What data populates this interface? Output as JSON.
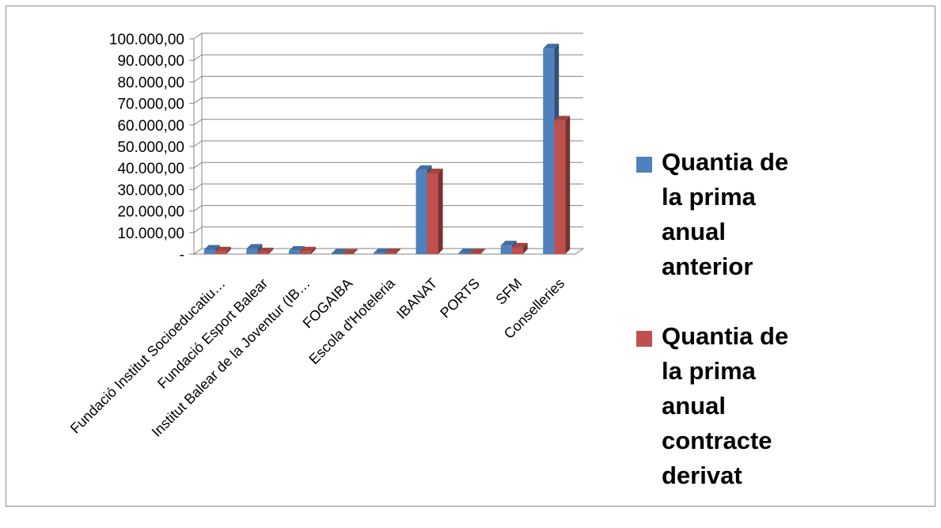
{
  "chart_data": {
    "type": "bar",
    "style": "3d-clustered-column",
    "categories": [
      "Fundació Institut Socioeducatiu…",
      "Fundació Esport Balear",
      "Institut Balear de la Joventur (IB…",
      "FOGAIBA",
      "Escola d'Hoteleria",
      "IBANAT",
      "PORTS",
      "SFM",
      "Conselleries"
    ],
    "series": [
      {
        "name": "Quantia de la prima anual anterior",
        "color": "#4f81bd",
        "values": [
          2000,
          2500,
          1500,
          200,
          500,
          39000,
          400,
          4000,
          95500
        ]
      },
      {
        "name": "Quantia de la prima anual contracte derivat",
        "color": "#c0504d",
        "values": [
          1200,
          800,
          1200,
          150,
          400,
          37500,
          300,
          3000,
          62000
        ]
      }
    ],
    "ylim": [
      0,
      100000
    ],
    "ytick_labels": [
      "-",
      "10.000,00",
      "20.000,00",
      "30.000,00",
      "40.000,00",
      "50.000,00",
      "60.000,00",
      "70.000,00",
      "80.000,00",
      "90.000,00",
      "100.000,00"
    ],
    "grid": true,
    "legend_position": "right"
  }
}
